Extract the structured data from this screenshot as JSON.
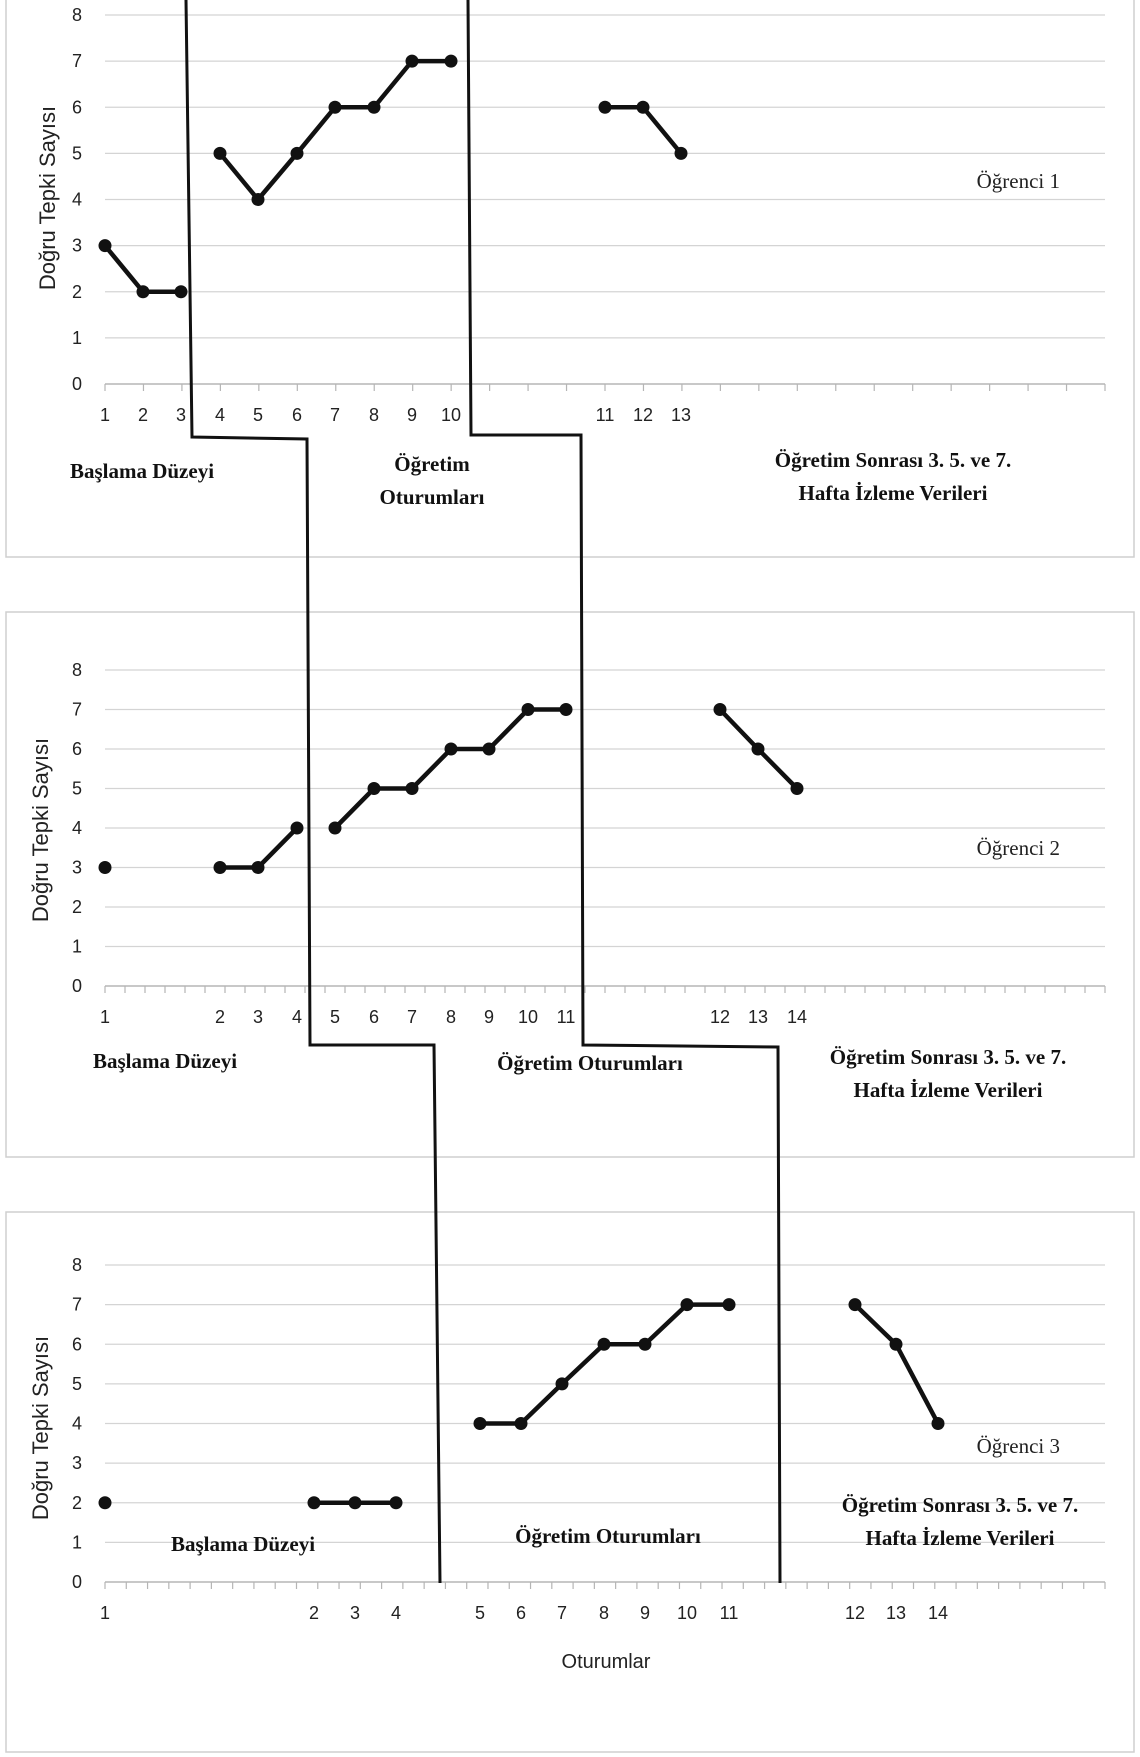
{
  "chart_data": [
    {
      "type": "line",
      "ylabel": "Doğru Tepki Sayısı",
      "ylim": [
        0,
        8
      ],
      "yticks": [
        0,
        1,
        2,
        3,
        4,
        5,
        6,
        7,
        8
      ],
      "grid": true,
      "student": "Öğrenci 1",
      "x_tick_labels": [
        "1",
        "2",
        "3",
        "4",
        "5",
        "6",
        "7",
        "8",
        "9",
        "10",
        "11",
        "12",
        "13"
      ],
      "series": [
        {
          "phase": "baseline",
          "points": [
            {
              "x": "1",
              "y": 3
            },
            {
              "x": "2",
              "y": 2
            },
            {
              "x": "3",
              "y": 2
            }
          ]
        },
        {
          "phase": "teaching",
          "points": [
            {
              "x": "4",
              "y": 5
            },
            {
              "x": "5",
              "y": 4
            },
            {
              "x": "6",
              "y": 5
            },
            {
              "x": "7",
              "y": 6
            },
            {
              "x": "8",
              "y": 6
            },
            {
              "x": "9",
              "y": 7
            },
            {
              "x": "10",
              "y": 7
            }
          ]
        },
        {
          "phase": "follow-up",
          "points": [
            {
              "x": "11",
              "y": 6
            },
            {
              "x": "12",
              "y": 6
            },
            {
              "x": "13",
              "y": 5
            }
          ]
        }
      ],
      "phases": [
        "Başlama Düzeyi",
        "Öğretim",
        "Oturumları",
        "Öğretim Sonrası 3. 5. ve 7.",
        "Hafta  İzleme Verileri"
      ]
    },
    {
      "type": "line",
      "ylabel": "Doğru Tepki Sayısı",
      "ylim": [
        0,
        8
      ],
      "yticks": [
        0,
        1,
        2,
        3,
        4,
        5,
        6,
        7,
        8
      ],
      "grid": true,
      "student": "Öğrenci 2",
      "x_tick_labels": [
        "1",
        "2",
        "3",
        "4",
        "5",
        "6",
        "7",
        "8",
        "9",
        "10",
        "11",
        "12",
        "13",
        "14"
      ],
      "series": [
        {
          "phase": "baseline-1",
          "points": [
            {
              "x": "1",
              "y": 3
            }
          ]
        },
        {
          "phase": "baseline-2",
          "points": [
            {
              "x": "2",
              "y": 3
            },
            {
              "x": "3",
              "y": 3
            },
            {
              "x": "4",
              "y": 4
            }
          ]
        },
        {
          "phase": "teaching",
          "points": [
            {
              "x": "5",
              "y": 4
            },
            {
              "x": "6",
              "y": 5
            },
            {
              "x": "7",
              "y": 5
            },
            {
              "x": "8",
              "y": 6
            },
            {
              "x": "9",
              "y": 6
            },
            {
              "x": "10",
              "y": 7
            },
            {
              "x": "11",
              "y": 7
            }
          ]
        },
        {
          "phase": "follow-up",
          "points": [
            {
              "x": "12",
              "y": 7
            },
            {
              "x": "13",
              "y": 6
            },
            {
              "x": "14",
              "y": 5
            }
          ]
        }
      ],
      "phases": [
        "Başlama Düzeyi",
        "Öğretim Oturumları",
        "Öğretim Sonrası 3. 5. ve 7.",
        "Hafta  İzleme Verileri"
      ]
    },
    {
      "type": "line",
      "ylabel": "Doğru Tepki Sayısı",
      "xlabel": "Oturumlar",
      "ylim": [
        0,
        8
      ],
      "yticks": [
        0,
        1,
        2,
        3,
        4,
        5,
        6,
        7,
        8
      ],
      "grid": true,
      "student": "Öğrenci 3",
      "x_tick_labels": [
        "1",
        "2",
        "3",
        "4",
        "5",
        "6",
        "7",
        "8",
        "9",
        "10",
        "11",
        "12",
        "13",
        "14"
      ],
      "series": [
        {
          "phase": "baseline-1",
          "points": [
            {
              "x": "1",
              "y": 2
            }
          ]
        },
        {
          "phase": "baseline-2",
          "points": [
            {
              "x": "2",
              "y": 2
            },
            {
              "x": "3",
              "y": 2
            },
            {
              "x": "4",
              "y": 2
            }
          ]
        },
        {
          "phase": "teaching",
          "points": [
            {
              "x": "5",
              "y": 4
            },
            {
              "x": "6",
              "y": 4
            },
            {
              "x": "7",
              "y": 5
            },
            {
              "x": "8",
              "y": 6
            },
            {
              "x": "9",
              "y": 6
            },
            {
              "x": "10",
              "y": 7
            },
            {
              "x": "11",
              "y": 7
            }
          ]
        },
        {
          "phase": "follow-up",
          "points": [
            {
              "x": "12",
              "y": 7
            },
            {
              "x": "13",
              "y": 6
            },
            {
              "x": "14",
              "y": 4
            }
          ]
        }
      ],
      "phases": [
        "Başlama Düzeyi",
        "Öğretim Oturumları",
        "Öğretim Sonrası 3. 5. ve 7.",
        "Hafta  İzleme Verileri"
      ]
    }
  ]
}
